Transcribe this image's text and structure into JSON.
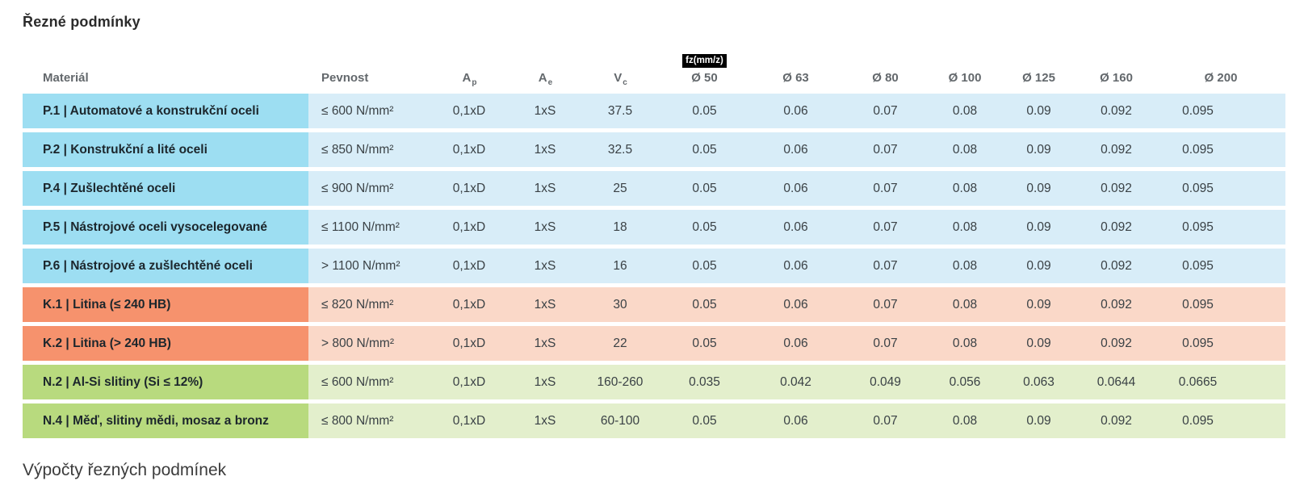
{
  "page": {
    "title": "Řezné podmínky",
    "footer_heading": "Výpočty řezných podmínek"
  },
  "table": {
    "headers": {
      "material": "Materiál",
      "strength": "Pevnost",
      "ap": {
        "base": "A",
        "sub": "p"
      },
      "ae": {
        "base": "A",
        "sub": "e"
      },
      "vc": {
        "base": "V",
        "sub": "c"
      },
      "fz_badge": "fz(mm/z)",
      "diameters": [
        "Ø 50",
        "Ø 63",
        "Ø 80",
        "Ø 100",
        "Ø 125",
        "Ø 160",
        "Ø 200"
      ]
    },
    "group_colors": {
      "steel": {
        "label_bg": "#9ddef2",
        "row_bg": "#d8edf8"
      },
      "cast-iron": {
        "label_bg": "#f6926d",
        "row_bg": "#fad8c8"
      },
      "nonferrous": {
        "label_bg": "#b8da7e",
        "row_bg": "#e3efcc"
      }
    },
    "rows": [
      {
        "group": "steel",
        "material": "P.1 | Automatové a konstrukční oceli",
        "strength": "≤ 600 N/mm²",
        "ap": "0,1xD",
        "ae": "1xS",
        "vc": "37.5",
        "fz": [
          "0.05",
          "0.06",
          "0.07",
          "0.08",
          "0.09",
          "0.092",
          "0.095"
        ]
      },
      {
        "group": "steel",
        "material": "P.2 | Konstrukční a lité oceli",
        "strength": "≤ 850 N/mm²",
        "ap": "0,1xD",
        "ae": "1xS",
        "vc": "32.5",
        "fz": [
          "0.05",
          "0.06",
          "0.07",
          "0.08",
          "0.09",
          "0.092",
          "0.095"
        ]
      },
      {
        "group": "steel",
        "material": "P.4 | Zušlechtěné oceli",
        "strength": "≤ 900 N/mm²",
        "ap": "0,1xD",
        "ae": "1xS",
        "vc": "25",
        "fz": [
          "0.05",
          "0.06",
          "0.07",
          "0.08",
          "0.09",
          "0.092",
          "0.095"
        ]
      },
      {
        "group": "steel",
        "material": "P.5 | Nástrojové oceli vysocelegované",
        "strength": "≤ 1100 N/mm²",
        "ap": "0,1xD",
        "ae": "1xS",
        "vc": "18",
        "fz": [
          "0.05",
          "0.06",
          "0.07",
          "0.08",
          "0.09",
          "0.092",
          "0.095"
        ]
      },
      {
        "group": "steel",
        "material": "P.6 | Nástrojové a zušlechtěné oceli",
        "strength": "> 1100 N/mm²",
        "ap": "0,1xD",
        "ae": "1xS",
        "vc": "16",
        "fz": [
          "0.05",
          "0.06",
          "0.07",
          "0.08",
          "0.09",
          "0.092",
          "0.095"
        ]
      },
      {
        "group": "cast-iron",
        "material": "K.1 | Litina (≤ 240 HB)",
        "strength": "≤ 820 N/mm²",
        "ap": "0,1xD",
        "ae": "1xS",
        "vc": "30",
        "fz": [
          "0.05",
          "0.06",
          "0.07",
          "0.08",
          "0.09",
          "0.092",
          "0.095"
        ]
      },
      {
        "group": "cast-iron",
        "material": "K.2 | Litina (> 240 HB)",
        "strength": "> 800 N/mm²",
        "ap": "0,1xD",
        "ae": "1xS",
        "vc": "22",
        "fz": [
          "0.05",
          "0.06",
          "0.07",
          "0.08",
          "0.09",
          "0.092",
          "0.095"
        ]
      },
      {
        "group": "nonferrous",
        "material": "N.2 | Al-Si slitiny (Si ≤ 12%)",
        "strength": "≤ 600 N/mm²",
        "ap": "0,1xD",
        "ae": "1xS",
        "vc": "160-260",
        "fz": [
          "0.035",
          "0.042",
          "0.049",
          "0.056",
          "0.063",
          "0.0644",
          "0.0665"
        ]
      },
      {
        "group": "nonferrous",
        "material": "N.4 | Měď, slitiny mědi, mosaz a bronz",
        "strength": "≤ 800 N/mm²",
        "ap": "0,1xD",
        "ae": "1xS",
        "vc": "60-100",
        "fz": [
          "0.05",
          "0.06",
          "0.07",
          "0.08",
          "0.09",
          "0.092",
          "0.095"
        ]
      }
    ]
  }
}
